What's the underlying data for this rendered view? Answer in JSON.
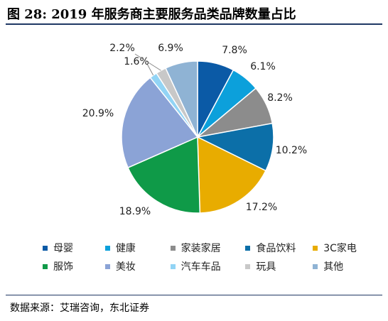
{
  "title": "图 28: 2019 年服务商主要服务品类品牌数量占比",
  "source": "数据来源：艾瑞咨询，东北证券",
  "chart_data": {
    "type": "pie",
    "title": "图 28: 2019 年服务商主要服务品类品牌数量占比",
    "legend_position": "bottom",
    "slices": [
      {
        "name": "母婴",
        "value": 7.8,
        "label": "7.8%",
        "color": "#0b5aa6"
      },
      {
        "name": "健康",
        "value": 6.1,
        "label": "6.1%",
        "color": "#0ca0db"
      },
      {
        "name": "家装家居",
        "value": 8.2,
        "label": "8.2%",
        "color": "#8c8c8c"
      },
      {
        "name": "食品饮料",
        "value": 10.2,
        "label": "10.2%",
        "color": "#0c6fa8"
      },
      {
        "name": "3C家电",
        "value": 17.2,
        "label": "17.2%",
        "color": "#e8ac00"
      },
      {
        "name": "服饰",
        "value": 18.9,
        "label": "18.9%",
        "color": "#0f9a48"
      },
      {
        "name": "美妆",
        "value": 20.9,
        "label": "20.9%",
        "color": "#8ba3d6"
      },
      {
        "name": "汽车车品",
        "value": 1.6,
        "label": "1.6%",
        "color": "#92d4f5"
      },
      {
        "name": "玩具",
        "value": 2.2,
        "label": "2.2%",
        "color": "#c8c8c8"
      },
      {
        "name": "其他",
        "value": 6.9,
        "label": "6.9%",
        "color": "#8fb3d4"
      }
    ]
  }
}
